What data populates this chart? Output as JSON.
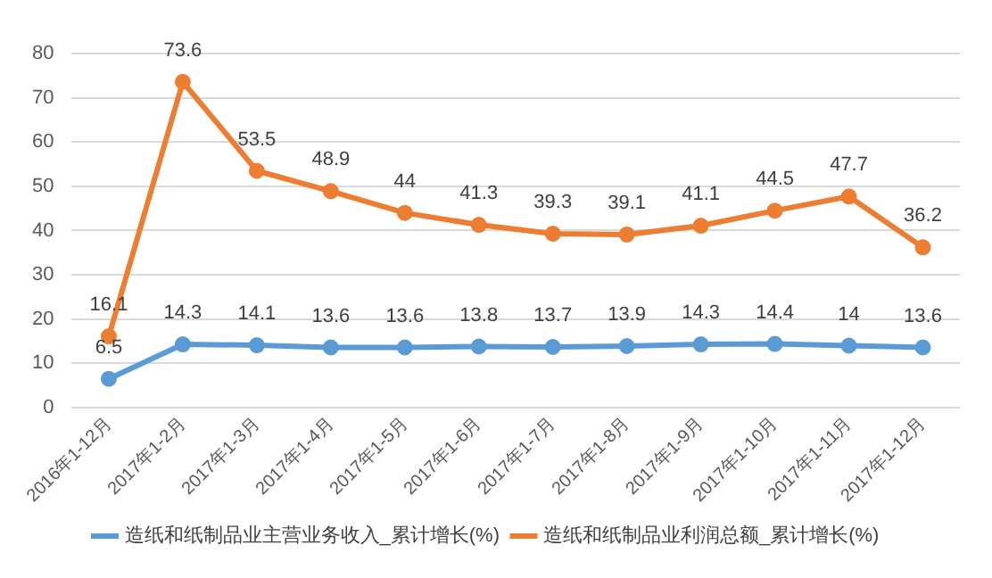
{
  "chart_data": {
    "type": "line",
    "categories": [
      "2016年1-12月",
      "2017年1-2月",
      "2017年1-3月",
      "2017年1-4月",
      "2017年1-5月",
      "2017年1-6月",
      "2017年1-7月",
      "2017年1-8月",
      "2017年1-9月",
      "2017年1-10月",
      "2017年1-11月",
      "2017年1-12月"
    ],
    "series": [
      {
        "name": "造纸和纸制品业主营业务收入_累计增长(%)",
        "color": "#5b9bd5",
        "values": [
          6.5,
          14.3,
          14.1,
          13.6,
          13.6,
          13.8,
          13.7,
          13.9,
          14.3,
          14.4,
          14,
          13.6
        ]
      },
      {
        "name": "造纸和纸制品业利润总额_累计增长(%)",
        "color": "#ed7d31",
        "values": [
          16.1,
          73.6,
          53.5,
          48.9,
          44,
          41.3,
          39.3,
          39.1,
          41.1,
          44.5,
          47.7,
          36.2
        ]
      }
    ],
    "ylim": [
      0,
      80
    ],
    "yticks": [
      0,
      10,
      20,
      30,
      40,
      50,
      60,
      70,
      80
    ],
    "grid": "y",
    "legend": "bottom",
    "marker": "circle",
    "line_style": "solid",
    "data_labels": true
  }
}
